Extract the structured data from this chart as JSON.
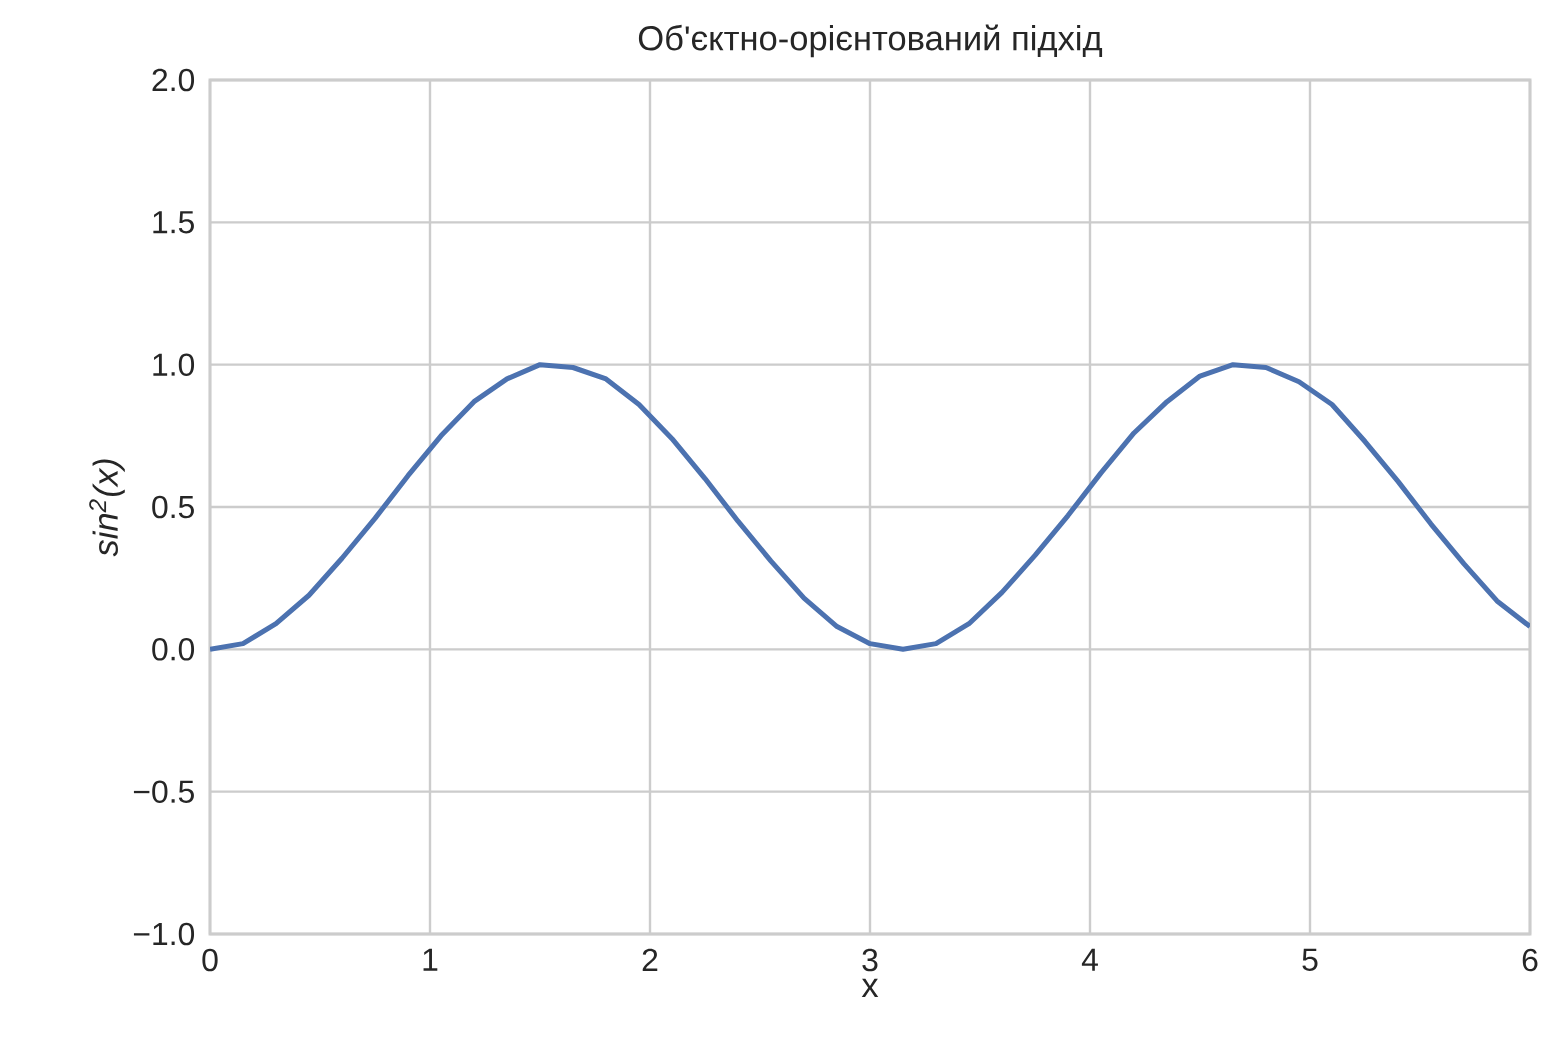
{
  "chart_data": {
    "type": "line",
    "title": "Об'єктно-орієнтований підхід",
    "xlabel": "x",
    "ylabel": "sin$^{2}$(x)",
    "x": [
      0,
      0.15,
      0.3,
      0.45,
      0.6,
      0.75,
      0.9,
      1.05,
      1.2,
      1.35,
      1.5,
      1.65,
      1.8,
      1.95,
      2.1,
      2.25,
      2.4,
      2.55,
      2.7,
      2.85,
      3.0,
      3.15,
      3.3,
      3.45,
      3.6,
      3.75,
      3.9,
      4.05,
      4.2,
      4.35,
      4.5,
      4.65,
      4.8,
      4.95,
      5.1,
      5.25,
      5.4,
      5.55,
      5.7,
      5.85,
      6.0
    ],
    "series": [
      {
        "color": "#4c72b0",
        "values": [
          0,
          0.02,
          0.09,
          0.19,
          0.32,
          0.46,
          0.61,
          0.75,
          0.87,
          0.95,
          1.0,
          0.99,
          0.95,
          0.86,
          0.74,
          0.6,
          0.45,
          0.31,
          0.18,
          0.08,
          0.02,
          0.0,
          0.02,
          0.09,
          0.2,
          0.33,
          0.47,
          0.62,
          0.76,
          0.87,
          0.96,
          1.0,
          0.99,
          0.94,
          0.86,
          0.73,
          0.59,
          0.44,
          0.3,
          0.17,
          0.08
        ]
      }
    ],
    "xlim": [
      0,
      6
    ],
    "ylim": [
      -1.0,
      2.0
    ],
    "xticks": [
      0,
      1,
      2,
      3,
      4,
      5,
      6
    ],
    "yticks": [
      {
        "value": -1.0,
        "label": "−1.0"
      },
      {
        "value": -0.5,
        "label": "−0.5"
      },
      {
        "value": 0.0,
        "label": "0.0"
      },
      {
        "value": 0.5,
        "label": "0.5"
      },
      {
        "value": 1.0,
        "label": "1.0"
      },
      {
        "value": 1.5,
        "label": "1.5"
      },
      {
        "value": 2.0,
        "label": "2.0"
      }
    ],
    "grid": true,
    "marker": "none",
    "line_style": "solid"
  }
}
